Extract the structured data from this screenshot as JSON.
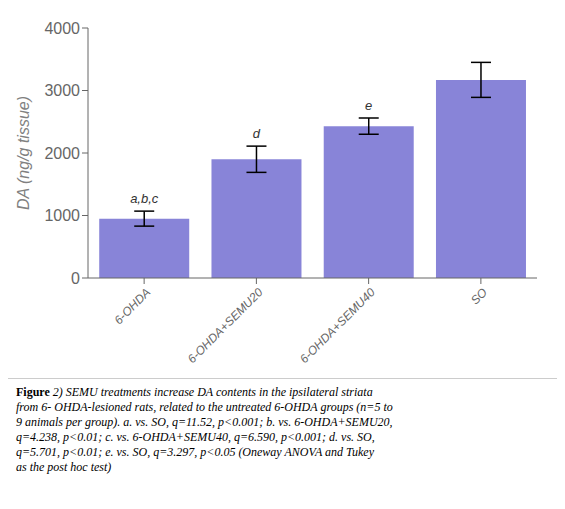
{
  "chart_data": {
    "type": "bar",
    "categories": [
      "6-OHDA",
      "6-OHDA+SEMU20",
      "6-OHDA+SEMU40",
      "SO"
    ],
    "values": [
      950,
      1900,
      2430,
      3170
    ],
    "errors": [
      120,
      210,
      130,
      280
    ],
    "annotations": [
      "a,b,c",
      "d",
      "e",
      null
    ],
    "ylabel": "DA (ng/g tissue)",
    "ylim": [
      0,
      4000
    ],
    "yticks": [
      0,
      1000,
      2000,
      3000,
      4000
    ],
    "grid": false,
    "caption": "Figure 2) SEMU treatments increase DA contents in the ipsilateral striata\nfrom 6- OHDA-lesioned rats, related to the untreated 6-OHDA groups (n=5 to\n9 animals per group). a. vs. SO, q=11.52, p<0.001; b. vs. 6-OHDA+SEMU20,\nq=4.238, p<0.01; c. vs. 6-OHDA+SEMU40, q=6.590, p<0.001; d. vs. SO,\nq=5.701, p<0.01; e. vs. SO, q=3.297, p<0.05 (Oneway ANOVA and Tukey\nas the post hoc test)"
  }
}
